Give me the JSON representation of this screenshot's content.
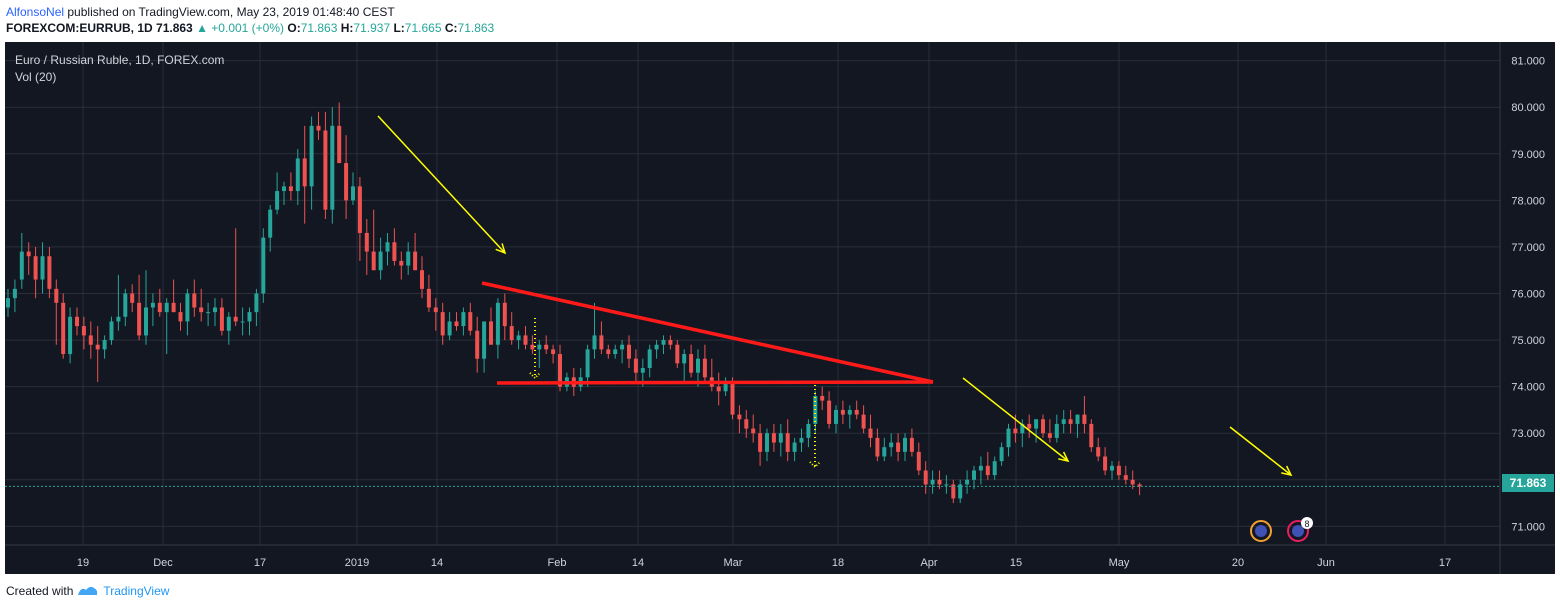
{
  "header": {
    "author": "AlfonsoNel",
    "published": "published on TradingView.com, May 23, 2019 01:48:40 CEST",
    "symbol": "FOREXCOM:EURRUB, 1D",
    "last": "71.863",
    "change": "+0.001 (+0%)",
    "o_label": "O:",
    "o": "71.863",
    "h_label": "H:",
    "h": "71.937",
    "l_label": "L:",
    "l": "71.665",
    "c_label": "C:",
    "c": "71.863"
  },
  "legend": {
    "series": "Euro / Russian Ruble, 1D, FOREX.com",
    "volume": "Vol (20)"
  },
  "price_tag": "71.863",
  "footer": {
    "created": "Created with",
    "brand": "TradingView"
  },
  "colors": {
    "background": "#131722",
    "up": "#26a69a",
    "down": "#ef5350",
    "grid": "#2a2e39",
    "trendline": "#ff1a1a",
    "arrow": "#ffff00",
    "price_line": "#26a69a"
  },
  "chart_data": {
    "type": "candlestick",
    "title": "Euro / Russian Ruble, 1D, FOREX.com",
    "ylim": [
      70.6,
      81.4
    ],
    "y_ticks": [
      "71.000",
      "72.000",
      "73.000",
      "74.000",
      "75.000",
      "76.000",
      "77.000",
      "78.000",
      "79.000",
      "80.000",
      "81.000"
    ],
    "x_ticks": [
      "19",
      "Dec",
      "17",
      "2019",
      "14",
      "Feb",
      "14",
      "Mar",
      "18",
      "Apr",
      "15",
      "May",
      "20",
      "Jun",
      "17"
    ],
    "grid": true,
    "candles": [
      [
        75.7,
        76.1,
        75.5,
        75.9
      ],
      [
        75.9,
        76.3,
        75.6,
        76.1
      ],
      [
        76.3,
        77.3,
        76.1,
        76.9
      ],
      [
        76.9,
        77.1,
        76.4,
        76.8
      ],
      [
        76.8,
        77.0,
        75.9,
        76.3
      ],
      [
        76.3,
        77.1,
        76.0,
        76.8
      ],
      [
        76.8,
        77.0,
        75.9,
        76.1
      ],
      [
        76.1,
        76.3,
        74.9,
        75.8
      ],
      [
        75.8,
        76.0,
        74.6,
        74.7
      ],
      [
        74.7,
        75.7,
        74.5,
        75.5
      ],
      [
        75.5,
        75.7,
        75.1,
        75.3
      ],
      [
        75.3,
        75.5,
        74.8,
        75.1
      ],
      [
        75.1,
        75.4,
        74.6,
        74.9
      ],
      [
        74.9,
        75.3,
        74.1,
        74.8
      ],
      [
        74.8,
        75.1,
        74.6,
        75.0
      ],
      [
        75.0,
        75.5,
        74.9,
        75.4
      ],
      [
        75.4,
        76.4,
        75.2,
        75.5
      ],
      [
        75.5,
        76.1,
        75.3,
        76.0
      ],
      [
        76.0,
        76.2,
        75.6,
        75.8
      ],
      [
        75.8,
        76.4,
        75.0,
        75.1
      ],
      [
        75.1,
        76.5,
        74.9,
        75.7
      ],
      [
        75.7,
        76.0,
        75.3,
        75.8
      ],
      [
        75.8,
        76.1,
        75.5,
        75.6
      ],
      [
        75.6,
        75.9,
        74.7,
        75.8
      ],
      [
        75.8,
        76.3,
        75.6,
        75.6
      ],
      [
        75.6,
        75.8,
        75.2,
        75.4
      ],
      [
        75.4,
        76.1,
        75.1,
        76.0
      ],
      [
        76.0,
        76.3,
        75.5,
        75.7
      ],
      [
        75.7,
        76.1,
        75.4,
        75.6
      ],
      [
        75.6,
        75.8,
        75.3,
        75.6
      ],
      [
        75.6,
        75.9,
        75.3,
        75.7
      ],
      [
        75.7,
        75.9,
        75.1,
        75.2
      ],
      [
        75.2,
        75.6,
        74.9,
        75.5
      ],
      [
        75.5,
        77.4,
        75.3,
        75.4
      ],
      [
        75.4,
        75.7,
        75.1,
        75.4
      ],
      [
        75.4,
        75.7,
        75.1,
        75.6
      ],
      [
        75.6,
        76.1,
        75.3,
        76.0
      ],
      [
        76.0,
        77.4,
        75.8,
        77.2
      ],
      [
        77.2,
        77.9,
        76.9,
        77.8
      ],
      [
        77.8,
        78.6,
        77.7,
        78.2
      ],
      [
        78.2,
        78.4,
        77.9,
        78.3
      ],
      [
        78.3,
        78.6,
        78.0,
        78.2
      ],
      [
        78.2,
        79.1,
        77.9,
        78.9
      ],
      [
        78.9,
        79.6,
        77.5,
        78.3
      ],
      [
        78.3,
        79.8,
        77.8,
        79.6
      ],
      [
        79.6,
        79.9,
        79.3,
        79.5
      ],
      [
        79.5,
        79.9,
        77.6,
        77.8
      ],
      [
        77.8,
        80.0,
        77.5,
        79.6
      ],
      [
        79.6,
        80.1,
        78.9,
        78.8
      ],
      [
        78.8,
        79.4,
        77.6,
        78.0
      ],
      [
        78.0,
        78.6,
        77.9,
        78.3
      ],
      [
        78.3,
        78.5,
        76.7,
        77.3
      ],
      [
        77.3,
        77.6,
        76.4,
        76.9
      ],
      [
        76.9,
        77.8,
        76.5,
        76.5
      ],
      [
        76.5,
        77.2,
        76.3,
        76.9
      ],
      [
        76.9,
        77.3,
        76.6,
        77.1
      ],
      [
        77.1,
        77.4,
        76.6,
        76.7
      ],
      [
        76.7,
        76.9,
        76.3,
        76.6
      ],
      [
        76.6,
        77.1,
        76.4,
        76.9
      ],
      [
        76.9,
        77.3,
        76.5,
        76.5
      ],
      [
        76.5,
        76.8,
        75.9,
        76.1
      ],
      [
        76.1,
        76.4,
        75.6,
        75.7
      ],
      [
        75.7,
        75.9,
        75.2,
        75.6
      ],
      [
        75.6,
        75.8,
        74.9,
        75.1
      ],
      [
        75.1,
        75.6,
        75.0,
        75.4
      ],
      [
        75.4,
        75.6,
        75.2,
        75.3
      ],
      [
        75.3,
        75.7,
        75.1,
        75.6
      ],
      [
        75.6,
        75.8,
        75.1,
        75.2
      ],
      [
        75.2,
        75.5,
        74.3,
        74.6
      ],
      [
        74.6,
        75.3,
        74.3,
        75.4
      ],
      [
        75.4,
        75.7,
        74.9,
        74.9
      ],
      [
        74.9,
        75.9,
        74.6,
        75.8
      ],
      [
        75.8,
        76.0,
        75.0,
        75.3
      ],
      [
        75.3,
        75.6,
        74.9,
        75.0
      ],
      [
        75.0,
        75.2,
        74.8,
        75.1
      ],
      [
        75.1,
        75.3,
        74.8,
        74.9
      ],
      [
        74.9,
        75.1,
        74.7,
        74.8
      ],
      [
        74.8,
        75.0,
        74.4,
        74.9
      ],
      [
        74.9,
        75.1,
        74.7,
        74.8
      ],
      [
        74.8,
        74.9,
        74.5,
        74.7
      ],
      [
        74.7,
        74.9,
        73.9,
        74.0
      ],
      [
        74.0,
        74.3,
        73.9,
        74.2
      ],
      [
        74.2,
        74.4,
        73.8,
        74.0
      ],
      [
        74.0,
        74.4,
        73.9,
        74.2
      ],
      [
        74.2,
        74.9,
        74.0,
        74.8
      ],
      [
        74.8,
        75.8,
        74.6,
        75.1
      ],
      [
        75.1,
        75.4,
        74.7,
        74.8
      ],
      [
        74.8,
        74.9,
        74.6,
        74.7
      ],
      [
        74.7,
        74.9,
        74.6,
        74.8
      ],
      [
        74.8,
        75.0,
        74.5,
        74.9
      ],
      [
        74.9,
        75.1,
        74.4,
        74.6
      ],
      [
        74.6,
        74.8,
        74.1,
        74.3
      ],
      [
        74.3,
        74.6,
        74.0,
        74.4
      ],
      [
        74.4,
        74.9,
        74.2,
        74.8
      ],
      [
        74.8,
        75.0,
        74.6,
        74.9
      ],
      [
        74.9,
        75.1,
        74.7,
        75.0
      ],
      [
        75.0,
        75.1,
        74.8,
        74.9
      ],
      [
        74.9,
        75.0,
        74.4,
        74.5
      ],
      [
        74.5,
        74.8,
        74.1,
        74.7
      ],
      [
        74.7,
        74.9,
        74.2,
        74.3
      ],
      [
        74.3,
        74.8,
        74.0,
        74.6
      ],
      [
        74.6,
        74.9,
        74.1,
        74.2
      ],
      [
        74.2,
        74.6,
        73.9,
        74.0
      ],
      [
        74.0,
        74.3,
        73.6,
        73.9
      ],
      [
        73.9,
        74.2,
        73.8,
        74.1
      ],
      [
        74.1,
        74.2,
        73.3,
        73.4
      ],
      [
        73.4,
        73.6,
        73.0,
        73.3
      ],
      [
        73.3,
        73.5,
        72.9,
        73.1
      ],
      [
        73.1,
        73.4,
        72.8,
        73.0
      ],
      [
        73.0,
        73.2,
        72.3,
        72.6
      ],
      [
        72.6,
        73.1,
        72.4,
        73.0
      ],
      [
        73.0,
        73.2,
        72.6,
        72.8
      ],
      [
        72.8,
        73.2,
        72.5,
        73.0
      ],
      [
        73.0,
        73.3,
        72.4,
        72.6
      ],
      [
        72.6,
        72.9,
        72.4,
        72.8
      ],
      [
        72.8,
        73.1,
        72.6,
        72.9
      ],
      [
        72.9,
        73.3,
        72.7,
        73.2
      ],
      [
        73.2,
        73.9,
        73.0,
        73.8
      ],
      [
        73.8,
        74.0,
        73.5,
        73.7
      ],
      [
        73.7,
        73.9,
        73.1,
        73.2
      ],
      [
        73.2,
        73.6,
        73.0,
        73.5
      ],
      [
        73.5,
        73.7,
        73.2,
        73.4
      ],
      [
        73.4,
        73.6,
        73.1,
        73.5
      ],
      [
        73.5,
        73.7,
        73.3,
        73.4
      ],
      [
        73.4,
        73.6,
        73.0,
        73.1
      ],
      [
        73.1,
        73.4,
        72.7,
        72.9
      ],
      [
        72.9,
        73.1,
        72.4,
        72.5
      ],
      [
        72.5,
        72.9,
        72.4,
        72.7
      ],
      [
        72.7,
        73.0,
        72.5,
        72.8
      ],
      [
        72.8,
        73.0,
        72.4,
        72.6
      ],
      [
        72.6,
        73.0,
        72.4,
        72.9
      ],
      [
        72.9,
        73.1,
        72.5,
        72.6
      ],
      [
        72.6,
        72.8,
        72.1,
        72.2
      ],
      [
        72.2,
        72.4,
        71.7,
        71.9
      ],
      [
        71.9,
        72.2,
        71.7,
        72.0
      ],
      [
        72.0,
        72.2,
        71.8,
        71.9
      ],
      [
        71.9,
        72.1,
        71.7,
        71.9
      ],
      [
        71.9,
        72.0,
        71.5,
        71.6
      ],
      [
        71.6,
        72.0,
        71.5,
        71.9
      ],
      [
        71.9,
        72.2,
        71.7,
        72.0
      ],
      [
        72.0,
        72.3,
        71.8,
        72.2
      ],
      [
        72.2,
        72.5,
        71.9,
        72.3
      ],
      [
        72.3,
        72.6,
        72.0,
        72.1
      ],
      [
        72.1,
        72.5,
        72.0,
        72.4
      ],
      [
        72.4,
        72.8,
        72.3,
        72.7
      ],
      [
        72.7,
        73.2,
        72.5,
        73.1
      ],
      [
        73.1,
        73.4,
        72.8,
        73.0
      ],
      [
        73.0,
        73.3,
        72.7,
        73.2
      ],
      [
        73.2,
        73.4,
        72.9,
        73.1
      ],
      [
        73.1,
        73.3,
        72.8,
        73.3
      ],
      [
        73.3,
        73.4,
        72.9,
        73.0
      ],
      [
        73.0,
        73.3,
        72.8,
        72.9
      ],
      [
        72.9,
        73.4,
        72.8,
        73.2
      ],
      [
        73.2,
        73.5,
        73.0,
        73.3
      ],
      [
        73.3,
        73.5,
        73.0,
        73.2
      ],
      [
        73.2,
        73.4,
        72.9,
        73.4
      ],
      [
        73.4,
        73.8,
        73.0,
        73.2
      ],
      [
        73.2,
        73.3,
        72.6,
        72.7
      ],
      [
        72.7,
        72.9,
        72.4,
        72.5
      ],
      [
        72.5,
        72.7,
        72.1,
        72.2
      ],
      [
        72.2,
        72.4,
        72.0,
        72.3
      ],
      [
        72.3,
        72.4,
        72.0,
        72.1
      ],
      [
        72.1,
        72.3,
        71.9,
        72.0
      ],
      [
        72.0,
        72.2,
        71.8,
        71.9
      ],
      [
        71.9,
        71.94,
        71.67,
        71.86
      ]
    ]
  }
}
